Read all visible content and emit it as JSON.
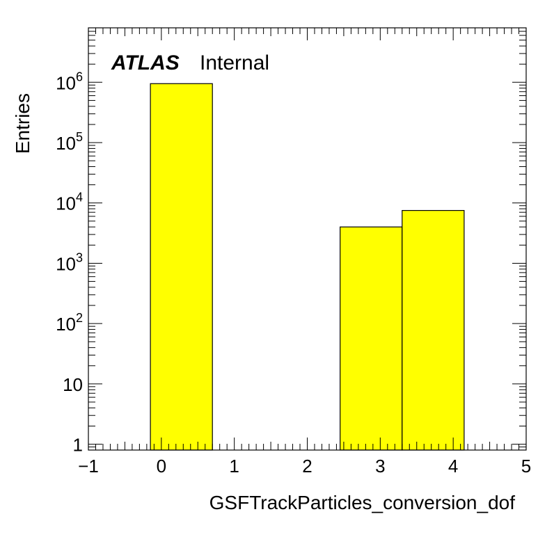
{
  "chart_data": {
    "type": "bar",
    "title": "",
    "xlabel": "GSFTrackParticles_conversion_dof",
    "ylabel": "Entries",
    "yscale": "log",
    "xlim": [
      -1,
      5
    ],
    "ylim": [
      0.8,
      8000000
    ],
    "grid": false,
    "bins": [
      {
        "x_low": -0.15,
        "x_high": 0.7,
        "value": 950000
      },
      {
        "x_low": 2.45,
        "x_high": 3.3,
        "value": 4000
      },
      {
        "x_low": 3.3,
        "x_high": 4.15,
        "value": 7500
      }
    ],
    "x_ticks": [
      {
        "value": -1,
        "label": "−1"
      },
      {
        "value": 0,
        "label": "0"
      },
      {
        "value": 1,
        "label": "1"
      },
      {
        "value": 2,
        "label": "2"
      },
      {
        "value": 3,
        "label": "3"
      },
      {
        "value": 4,
        "label": "4"
      },
      {
        "value": 5,
        "label": "5"
      }
    ],
    "y_ticks": [
      {
        "value": 1,
        "base": "1",
        "exp": ""
      },
      {
        "value": 10,
        "base": "10",
        "exp": ""
      },
      {
        "value": 100,
        "base": "10",
        "exp": "2"
      },
      {
        "value": 1000,
        "base": "10",
        "exp": "3"
      },
      {
        "value": 10000,
        "base": "10",
        "exp": "4"
      },
      {
        "value": 100000,
        "base": "10",
        "exp": "5"
      },
      {
        "value": 1000000,
        "base": "10",
        "exp": "6"
      }
    ],
    "bar_color": "#ffff00",
    "annotation": {
      "bold": "ATLAS",
      "text": "Internal"
    }
  }
}
